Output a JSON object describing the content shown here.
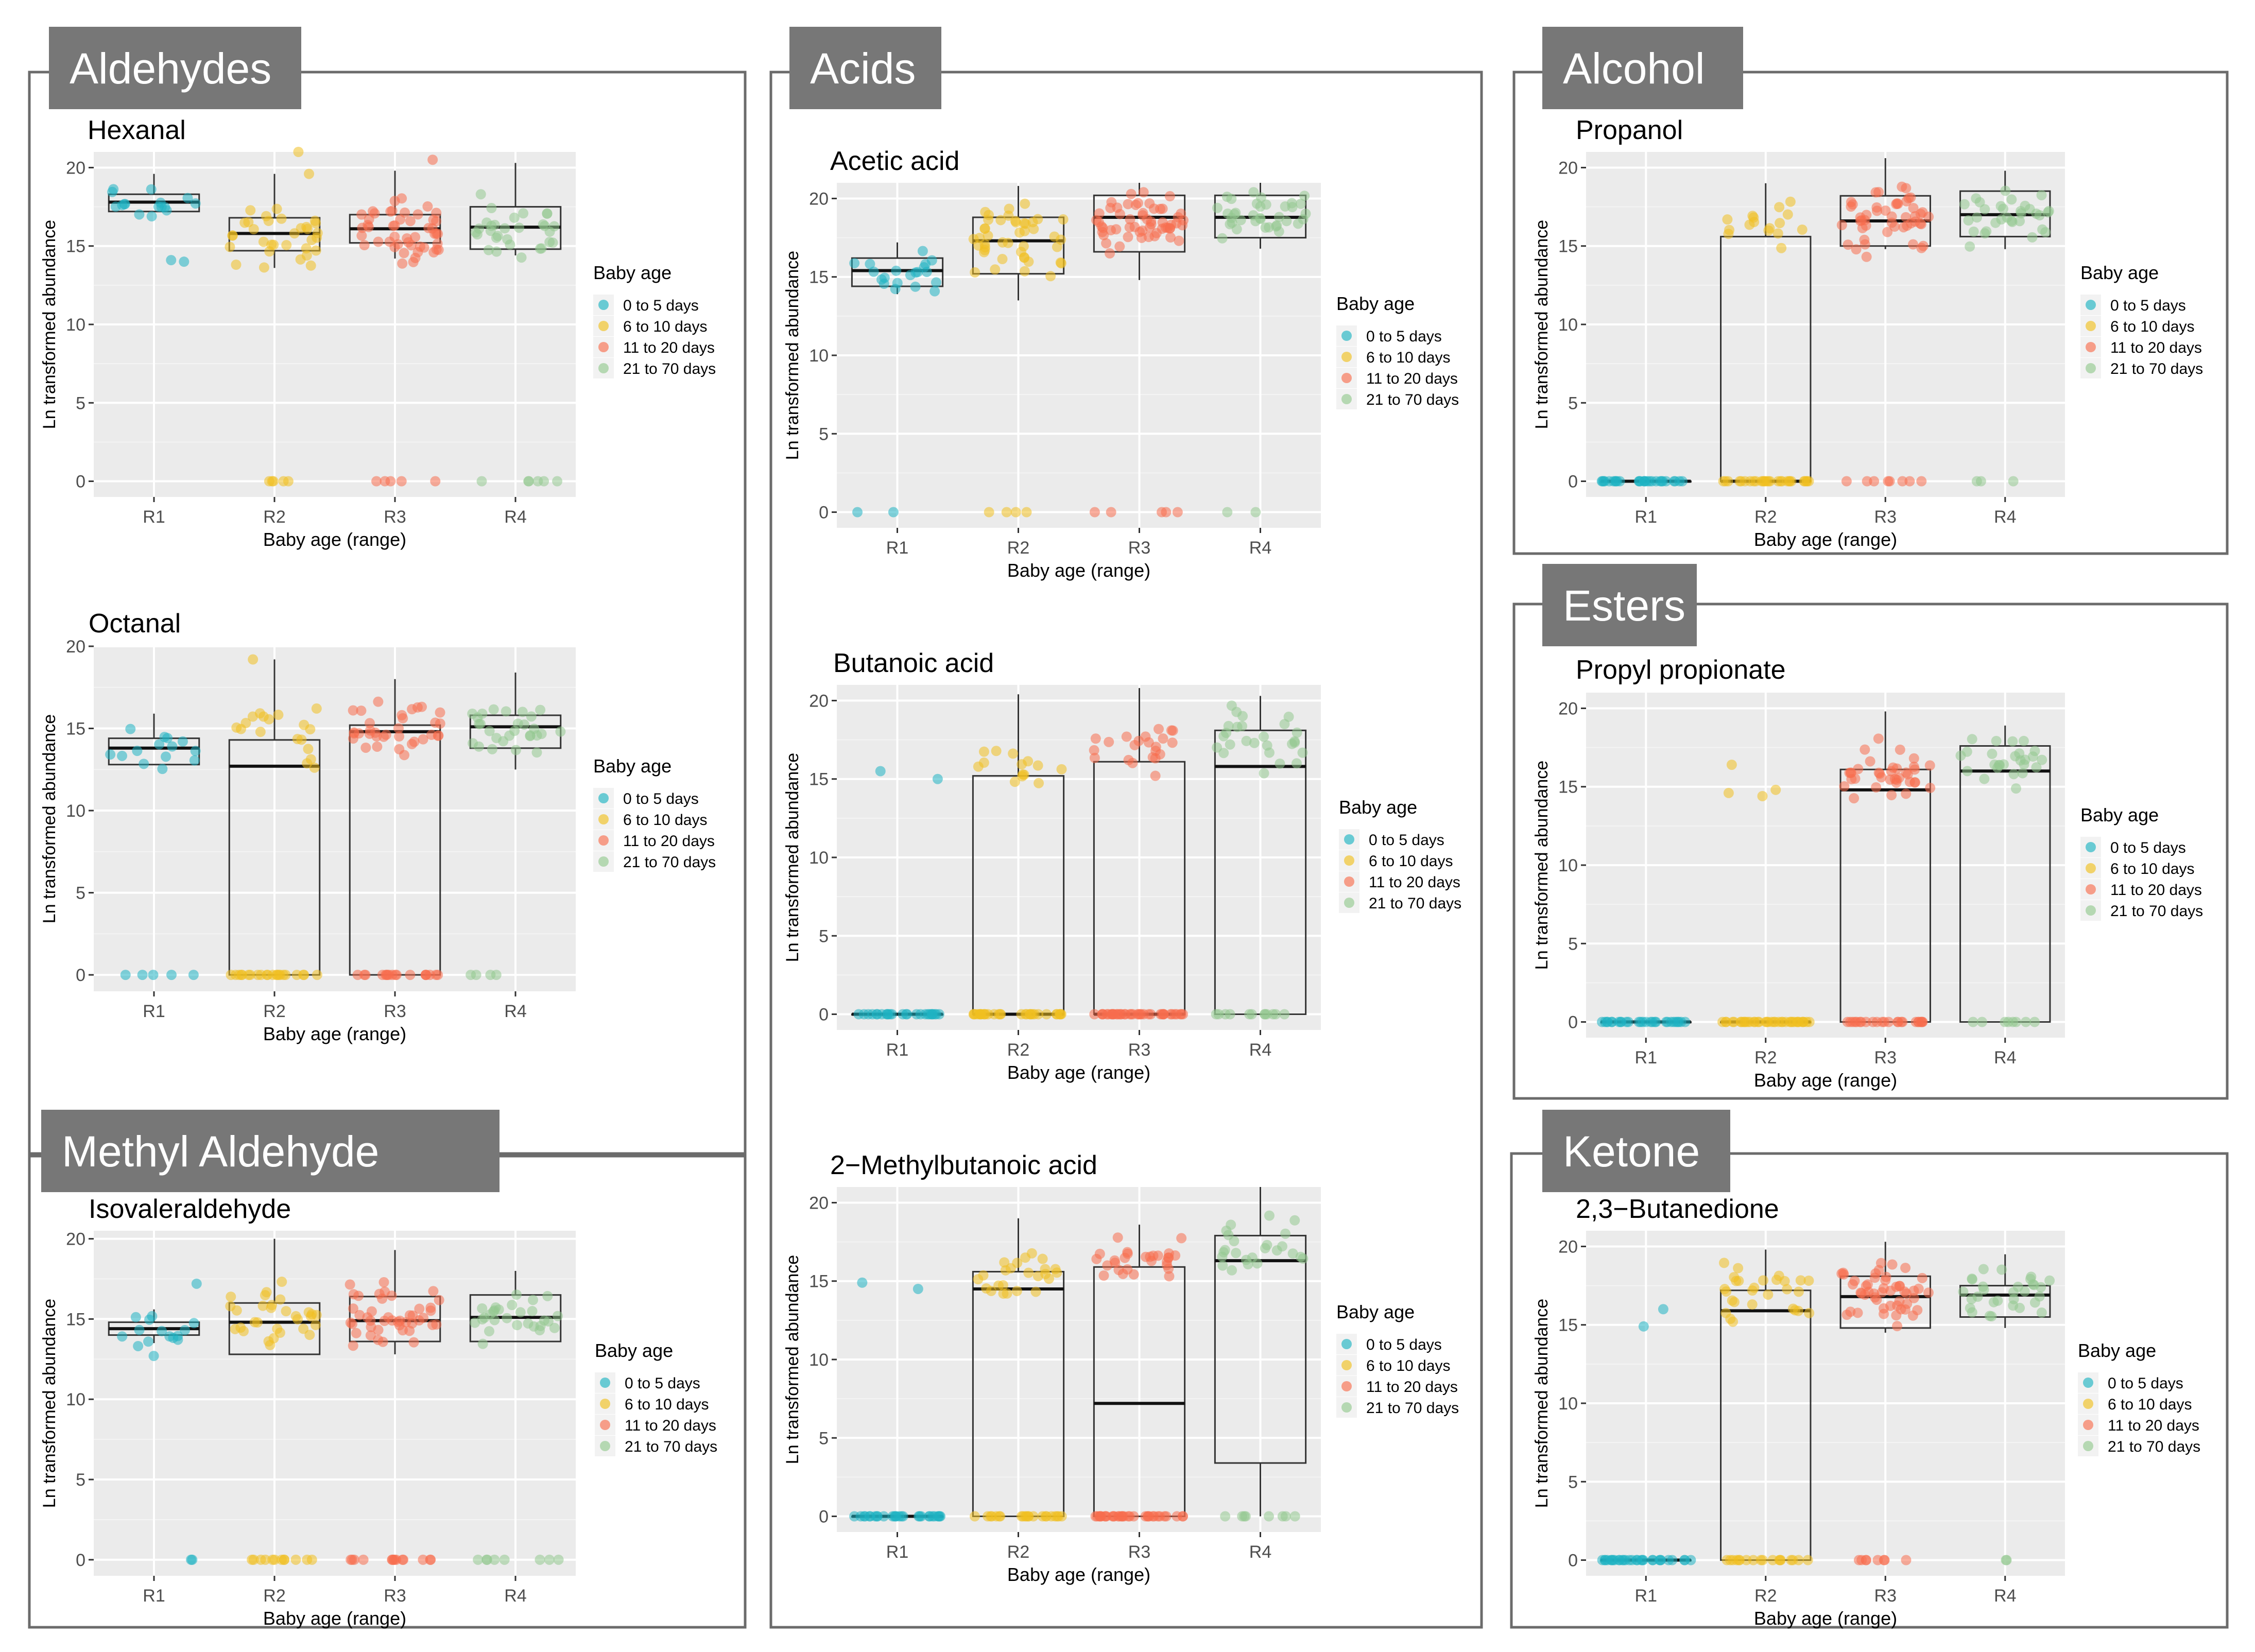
{
  "legend": {
    "title": "Baby age",
    "entries": [
      "0 to 5 days",
      "6 to 10 days",
      "11 to 20 days",
      "21 to 70 days"
    ],
    "colors": [
      "#1fb3c2",
      "#f0c020",
      "#f86e4e",
      "#93c98f"
    ]
  },
  "axis_labels": {
    "x": "Baby age (range)",
    "y": "Ln transformed abundance"
  },
  "groups": [
    {
      "id": "aldehydes",
      "title": "Aldehydes"
    },
    {
      "id": "acids",
      "title": "Acids"
    },
    {
      "id": "alcohol",
      "title": "Alcohol"
    },
    {
      "id": "esters",
      "title": "Esters"
    },
    {
      "id": "methyl",
      "title": "Methyl Aldehyde"
    },
    {
      "id": "ketone",
      "title": "Ketone"
    }
  ],
  "chart_data": [
    {
      "type": "box",
      "title": "Hexanal",
      "group": "aldehydes",
      "categories": [
        "R1",
        "R2",
        "R3",
        "R4"
      ],
      "ylim": [
        -1,
        21
      ],
      "yticks": [
        0,
        5,
        10,
        15,
        20
      ],
      "xlabel": "Baby age (range)",
      "ylabel": "Ln transformed abundance",
      "boxes": [
        {
          "q1": 17.2,
          "median": 17.8,
          "q3": 18.3,
          "lo": 17.2,
          "hi": 19.6
        },
        {
          "q1": 14.7,
          "median": 15.8,
          "q3": 16.8,
          "lo": 13.6,
          "hi": 19.6
        },
        {
          "q1": 15.2,
          "median": 16.1,
          "q3": 17.0,
          "lo": 14.2,
          "hi": 19.8
        },
        {
          "q1": 14.8,
          "median": 16.2,
          "q3": 17.5,
          "lo": 14.4,
          "hi": 20.3
        }
      ],
      "points": [
        {
          "n": 16,
          "center": 17.7,
          "spread": 0.9,
          "zeros": 0,
          "outliers": [
            14.1,
            14.0
          ]
        },
        {
          "n": 32,
          "center": 15.7,
          "spread": 1.3,
          "zeros": 5,
          "outliers": [
            21.0,
            19.6
          ]
        },
        {
          "n": 48,
          "center": 16.1,
          "spread": 1.3,
          "zeros": 5,
          "outliers": [
            20.5
          ]
        },
        {
          "n": 30,
          "center": 16.2,
          "spread": 1.4,
          "zeros": 6,
          "outliers": []
        }
      ]
    },
    {
      "type": "box",
      "title": "Octanal",
      "group": "aldehydes",
      "categories": [
        "R1",
        "R2",
        "R3",
        "R4"
      ],
      "ylim": [
        -1,
        20
      ],
      "yticks": [
        0,
        5,
        10,
        15,
        20
      ],
      "xlabel": "Baby age (range)",
      "ylabel": "Ln transformed abundance",
      "boxes": [
        {
          "q1": 12.8,
          "median": 13.8,
          "q3": 14.4,
          "lo": 12.8,
          "hi": 15.9
        },
        {
          "q1": 0.0,
          "median": 12.7,
          "q3": 14.3,
          "lo": 0.0,
          "hi": 19.2
        },
        {
          "q1": 0.0,
          "median": 14.8,
          "q3": 15.2,
          "lo": 0.0,
          "hi": 18.0
        },
        {
          "q1": 13.8,
          "median": 15.1,
          "q3": 15.8,
          "lo": 12.5,
          "hi": 18.4
        }
      ],
      "points": [
        {
          "n": 14,
          "center": 13.8,
          "spread": 1.0,
          "zeros": 5,
          "outliers": []
        },
        {
          "n": 18,
          "center": 14.5,
          "spread": 1.3,
          "zeros": 22,
          "outliers": [
            19.2
          ]
        },
        {
          "n": 34,
          "center": 15.0,
          "spread": 1.0,
          "zeros": 18,
          "outliers": []
        },
        {
          "n": 28,
          "center": 15.0,
          "spread": 1.2,
          "zeros": 4,
          "outliers": []
        }
      ]
    },
    {
      "type": "box",
      "title": "Isovaleraldehyde",
      "group": "methyl",
      "categories": [
        "R1",
        "R2",
        "R3",
        "R4"
      ],
      "ylim": [
        -1,
        20.5
      ],
      "yticks": [
        0,
        5,
        10,
        15,
        20
      ],
      "xlabel": "Baby age (range)",
      "ylabel": "Ln transformed abundance",
      "boxes": [
        {
          "q1": 14.0,
          "median": 14.4,
          "q3": 14.8,
          "lo": 13.5,
          "hi": 15.6
        },
        {
          "q1": 12.8,
          "median": 14.8,
          "q3": 16.0,
          "lo": 12.8,
          "hi": 20.0
        },
        {
          "q1": 13.6,
          "median": 14.9,
          "q3": 16.4,
          "lo": 12.8,
          "hi": 19.3
        },
        {
          "q1": 13.6,
          "median": 15.1,
          "q3": 16.5,
          "lo": 13.6,
          "hi": 18.0
        }
      ],
      "points": [
        {
          "n": 14,
          "center": 14.4,
          "spread": 0.7,
          "zeros": 2,
          "outliers": [
            17.2,
            12.7
          ]
        },
        {
          "n": 30,
          "center": 15.0,
          "spread": 1.5,
          "zeros": 12,
          "outliers": []
        },
        {
          "n": 44,
          "center": 15.0,
          "spread": 1.3,
          "zeros": 14,
          "outliers": []
        },
        {
          "n": 28,
          "center": 15.2,
          "spread": 1.2,
          "zeros": 8,
          "outliers": []
        }
      ]
    },
    {
      "type": "box",
      "title": "Acetic acid",
      "group": "acids",
      "categories": [
        "R1",
        "R2",
        "R3",
        "R4"
      ],
      "ylim": [
        -1,
        21
      ],
      "yticks": [
        0,
        5,
        10,
        15,
        20
      ],
      "xlabel": "Baby age (range)",
      "ylabel": "Ln transformed abundance",
      "boxes": [
        {
          "q1": 14.4,
          "median": 15.4,
          "q3": 16.2,
          "lo": 13.9,
          "hi": 17.2
        },
        {
          "q1": 15.2,
          "median": 17.3,
          "q3": 18.8,
          "lo": 13.5,
          "hi": 20.8
        },
        {
          "q1": 16.6,
          "median": 18.8,
          "q3": 20.2,
          "lo": 14.8,
          "hi": 21.0
        },
        {
          "q1": 17.5,
          "median": 18.8,
          "q3": 20.2,
          "lo": 16.8,
          "hi": 21.0
        }
      ],
      "points": [
        {
          "n": 20,
          "center": 15.4,
          "spread": 1.0,
          "zeros": 2,
          "outliers": []
        },
        {
          "n": 44,
          "center": 17.3,
          "spread": 1.8,
          "zeros": 4,
          "outliers": []
        },
        {
          "n": 56,
          "center": 18.5,
          "spread": 1.6,
          "zeros": 5,
          "outliers": []
        },
        {
          "n": 36,
          "center": 18.8,
          "spread": 1.2,
          "zeros": 2,
          "outliers": []
        }
      ]
    },
    {
      "type": "box",
      "title": "Butanoic acid",
      "group": "acids",
      "categories": [
        "R1",
        "R2",
        "R3",
        "R4"
      ],
      "ylim": [
        -1,
        21
      ],
      "yticks": [
        0,
        5,
        10,
        15,
        20
      ],
      "xlabel": "Baby age (range)",
      "ylabel": "Ln transformed abundance",
      "boxes": [
        {
          "q1": 0.0,
          "median": 0.0,
          "q3": 0.0,
          "lo": 0.0,
          "hi": 0.0
        },
        {
          "q1": 0.0,
          "median": 0.0,
          "q3": 15.2,
          "lo": 0.0,
          "hi": 20.4
        },
        {
          "q1": 0.0,
          "median": 0.0,
          "q3": 16.1,
          "lo": 0.0,
          "hi": 20.8
        },
        {
          "q1": 0.0,
          "median": 15.8,
          "q3": 18.1,
          "lo": 0.0,
          "hi": 20.3
        }
      ],
      "points": [
        {
          "n": 0,
          "center": 0,
          "spread": 0,
          "zeros": 26,
          "outliers": [
            15.0,
            15.5
          ]
        },
        {
          "n": 14,
          "center": 16.2,
          "spread": 1.3,
          "zeros": 32,
          "outliers": []
        },
        {
          "n": 22,
          "center": 16.8,
          "spread": 1.3,
          "zeros": 40,
          "outliers": []
        },
        {
          "n": 26,
          "center": 17.5,
          "spread": 1.6,
          "zeros": 12,
          "outliers": []
        }
      ]
    },
    {
      "type": "box",
      "title": "2−Methylbutanoic acid",
      "group": "acids",
      "categories": [
        "R1",
        "R2",
        "R3",
        "R4"
      ],
      "ylim": [
        -1,
        21
      ],
      "yticks": [
        0,
        5,
        10,
        15,
        20
      ],
      "xlabel": "Baby age (range)",
      "ylabel": "Ln transformed abundance",
      "boxes": [
        {
          "q1": 0.0,
          "median": 0.0,
          "q3": 0.0,
          "lo": 0.0,
          "hi": 0.0
        },
        {
          "q1": 0.0,
          "median": 14.5,
          "q3": 15.6,
          "lo": 0.0,
          "hi": 19.0
        },
        {
          "q1": 0.0,
          "median": 7.2,
          "q3": 15.9,
          "lo": 0.0,
          "hi": 18.6
        },
        {
          "q1": 3.4,
          "median": 16.3,
          "q3": 17.9,
          "lo": 0.0,
          "hi": 21.0
        }
      ],
      "points": [
        {
          "n": 0,
          "center": 0,
          "spread": 0,
          "zeros": 28,
          "outliers": [
            14.9,
            14.5
          ]
        },
        {
          "n": 24,
          "center": 15.5,
          "spread": 1.2,
          "zeros": 22,
          "outliers": []
        },
        {
          "n": 28,
          "center": 16.3,
          "spread": 1.2,
          "zeros": 34,
          "outliers": []
        },
        {
          "n": 24,
          "center": 17.2,
          "spread": 1.6,
          "zeros": 8,
          "outliers": []
        }
      ]
    },
    {
      "type": "box",
      "title": "Propanol",
      "group": "alcohol",
      "categories": [
        "R1",
        "R2",
        "R3",
        "R4"
      ],
      "ylim": [
        -1,
        21
      ],
      "yticks": [
        0,
        5,
        10,
        15,
        20
      ],
      "xlabel": "Baby age (range)",
      "ylabel": "Ln transformed abundance",
      "boxes": [
        {
          "q1": 0.0,
          "median": 0.0,
          "q3": 0.0,
          "lo": 0.0,
          "hi": 0.0
        },
        {
          "q1": 0.0,
          "median": 0.0,
          "q3": 15.6,
          "lo": 0.0,
          "hi": 19.0
        },
        {
          "q1": 15.0,
          "median": 16.6,
          "q3": 18.2,
          "lo": 14.8,
          "hi": 20.6
        },
        {
          "q1": 15.6,
          "median": 17.0,
          "q3": 18.5,
          "lo": 14.8,
          "hi": 19.8
        }
      ],
      "points": [
        {
          "n": 0,
          "center": 0,
          "spread": 0,
          "zeros": 28,
          "outliers": []
        },
        {
          "n": 16,
          "center": 16.5,
          "spread": 1.2,
          "zeros": 28,
          "outliers": []
        },
        {
          "n": 48,
          "center": 16.8,
          "spread": 1.4,
          "zeros": 8,
          "outliers": []
        },
        {
          "n": 32,
          "center": 17.1,
          "spread": 1.3,
          "zeros": 3,
          "outliers": []
        }
      ]
    },
    {
      "type": "box",
      "title": "Propyl propionate",
      "group": "esters",
      "categories": [
        "R1",
        "R2",
        "R3",
        "R4"
      ],
      "ylim": [
        -1,
        21
      ],
      "yticks": [
        0,
        5,
        10,
        15,
        20
      ],
      "xlabel": "Baby age (range)",
      "ylabel": "Ln transformed abundance",
      "boxes": [
        {
          "q1": 0.0,
          "median": 0.0,
          "q3": 0.0,
          "lo": 0.0,
          "hi": 0.0
        },
        {
          "q1": 0.0,
          "median": 0.0,
          "q3": 0.0,
          "lo": 0.0,
          "hi": 0.0
        },
        {
          "q1": 0.0,
          "median": 14.8,
          "q3": 16.1,
          "lo": 0.0,
          "hi": 19.8
        },
        {
          "q1": 0.0,
          "median": 16.0,
          "q3": 17.6,
          "lo": 0.0,
          "hi": 18.9
        }
      ],
      "points": [
        {
          "n": 0,
          "center": 0,
          "spread": 0,
          "zeros": 28,
          "outliers": []
        },
        {
          "n": 0,
          "center": 0,
          "spread": 0,
          "zeros": 38,
          "outliers": [
            14.8,
            16.4,
            14.6,
            14.4
          ]
        },
        {
          "n": 36,
          "center": 15.8,
          "spread": 1.2,
          "zeros": 24,
          "outliers": []
        },
        {
          "n": 26,
          "center": 16.6,
          "spread": 1.2,
          "zeros": 8,
          "outliers": []
        }
      ]
    },
    {
      "type": "box",
      "title": "2,3−Butanedione",
      "group": "ketone",
      "categories": [
        "R1",
        "R2",
        "R3",
        "R4"
      ],
      "ylim": [
        -1,
        21
      ],
      "yticks": [
        0,
        5,
        10,
        15,
        20
      ],
      "xlabel": "Baby age (range)",
      "ylabel": "Ln transformed abundance",
      "boxes": [
        {
          "q1": 0.0,
          "median": 0.0,
          "q3": 0.0,
          "lo": 0.0,
          "hi": 0.0
        },
        {
          "q1": 0.0,
          "median": 15.9,
          "q3": 17.2,
          "lo": 0.0,
          "hi": 19.8
        },
        {
          "q1": 14.8,
          "median": 16.8,
          "q3": 18.1,
          "lo": 14.5,
          "hi": 20.3
        },
        {
          "q1": 15.5,
          "median": 16.9,
          "q3": 17.5,
          "lo": 14.8,
          "hi": 19.5
        }
      ],
      "points": [
        {
          "n": 0,
          "center": 0,
          "spread": 0,
          "zeros": 30,
          "outliers": [
            16.0,
            14.9
          ]
        },
        {
          "n": 28,
          "center": 16.8,
          "spread": 1.3,
          "zeros": 18,
          "outliers": []
        },
        {
          "n": 50,
          "center": 17.0,
          "spread": 1.4,
          "zeros": 8,
          "outliers": []
        },
        {
          "n": 30,
          "center": 16.9,
          "spread": 1.2,
          "zeros": 2,
          "outliers": []
        }
      ]
    }
  ]
}
